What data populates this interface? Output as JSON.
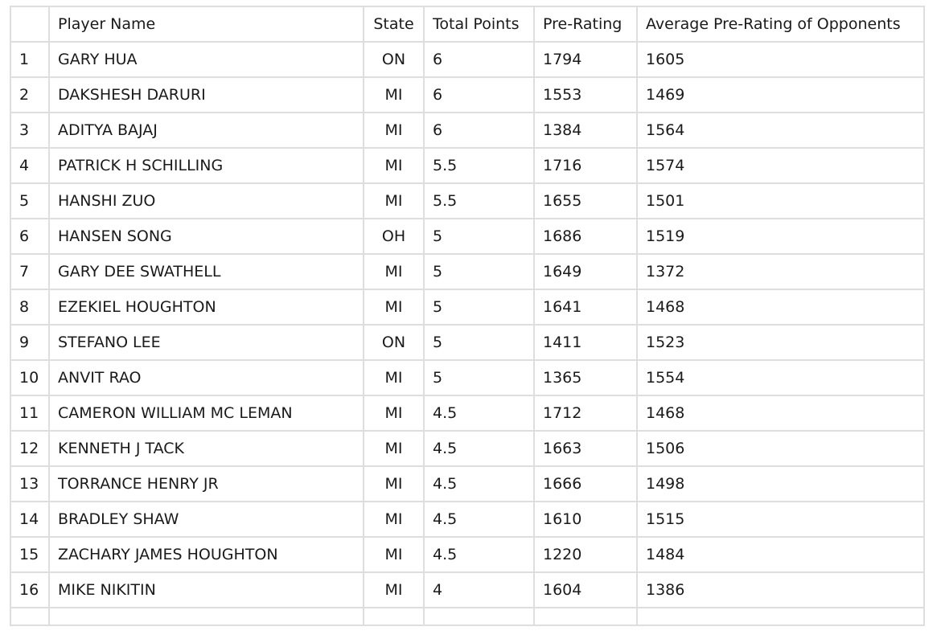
{
  "table": {
    "headers": [
      "",
      "Player Name",
      "State",
      "Total Points",
      "Pre-Rating",
      "Average Pre-Rating of Opponents"
    ],
    "rows": [
      [
        "1",
        "GARY HUA",
        "ON",
        "6",
        "1794",
        "1605"
      ],
      [
        "2",
        "DAKSHESH DARURI",
        "MI",
        "6",
        "1553",
        "1469"
      ],
      [
        "3",
        "ADITYA BAJAJ",
        "MI",
        "6",
        "1384",
        "1564"
      ],
      [
        "4",
        "PATRICK H SCHILLING",
        "MI",
        "5.5",
        "1716",
        "1574"
      ],
      [
        "5",
        "HANSHI ZUO",
        "MI",
        "5.5",
        "1655",
        "1501"
      ],
      [
        "6",
        "HANSEN SONG",
        "OH",
        "5",
        "1686",
        "1519"
      ],
      [
        "7",
        "GARY DEE SWATHELL",
        "MI",
        "5",
        "1649",
        "1372"
      ],
      [
        "8",
        "EZEKIEL HOUGHTON",
        "MI",
        "5",
        "1641",
        "1468"
      ],
      [
        "9",
        "STEFANO LEE",
        "ON",
        "5",
        "1411",
        "1523"
      ],
      [
        "10",
        "ANVIT RAO",
        "MI",
        "5",
        "1365",
        "1554"
      ],
      [
        "11",
        "CAMERON WILLIAM MC LEMAN",
        "MI",
        "4.5",
        "1712",
        "1468"
      ],
      [
        "12",
        "KENNETH J TACK",
        "MI",
        "4.5",
        "1663",
        "1506"
      ],
      [
        "13",
        "TORRANCE HENRY JR",
        "MI",
        "4.5",
        "1666",
        "1498"
      ],
      [
        "14",
        "BRADLEY SHAW",
        "MI",
        "4.5",
        "1610",
        "1515"
      ],
      [
        "15",
        "ZACHARY JAMES HOUGHTON",
        "MI",
        "4.5",
        "1220",
        "1484"
      ],
      [
        "16",
        "MIKE NIKITIN",
        "MI",
        "4",
        "1604",
        "1386"
      ]
    ]
  }
}
